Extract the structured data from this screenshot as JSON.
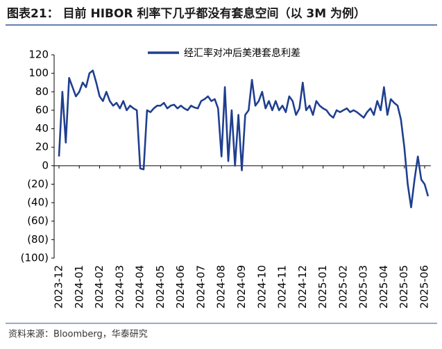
{
  "chart_data": {
    "type": "line",
    "title": "图表21： 目前 HIBOR 利率下几乎都没有套息空间（以 3M 为例）",
    "source": "资料来源：Bloomberg，华泰研究",
    "categories": [
      "2023-12",
      null,
      null,
      null,
      null,
      null,
      "2024-01",
      null,
      null,
      null,
      null,
      null,
      "2024-02",
      null,
      null,
      null,
      null,
      null,
      "2024-03",
      null,
      null,
      null,
      null,
      null,
      "2024-04",
      null,
      null,
      null,
      null,
      null,
      "2024-05",
      null,
      null,
      null,
      null,
      null,
      "2024-06",
      null,
      null,
      null,
      null,
      null,
      "2024-07",
      null,
      null,
      null,
      null,
      null,
      "2024-08",
      null,
      null,
      null,
      null,
      null,
      "2024-09",
      null,
      null,
      null,
      null,
      null,
      "2024-10",
      null,
      null,
      null,
      null,
      null,
      "2024-11",
      null,
      null,
      null,
      null,
      null,
      "2024-12",
      null,
      null,
      null,
      null,
      null,
      "2025-01",
      null,
      null,
      null,
      null,
      null,
      "2025-02",
      null,
      null,
      null,
      null,
      null,
      "2025-03",
      null,
      null,
      null,
      null,
      null,
      "2025-04",
      null,
      null,
      null,
      null,
      null,
      "2025-05",
      null,
      null,
      null,
      null,
      null,
      "2025-06",
      null
    ],
    "series": [
      {
        "name": "经汇率对冲后美港套息利差",
        "color": "#1f3f8f",
        "values": [
          10,
          80,
          25,
          95,
          85,
          75,
          80,
          90,
          85,
          100,
          103,
          90,
          75,
          70,
          80,
          70,
          65,
          68,
          62,
          70,
          60,
          65,
          62,
          60,
          -3,
          -4,
          60,
          58,
          62,
          65,
          65,
          68,
          62,
          65,
          66,
          62,
          65,
          62,
          60,
          65,
          63,
          62,
          70,
          72,
          75,
          70,
          72,
          62,
          10,
          85,
          5,
          60,
          0,
          55,
          -5,
          55,
          60,
          93,
          65,
          70,
          80,
          62,
          70,
          60,
          70,
          60,
          65,
          58,
          75,
          70,
          55,
          62,
          90,
          60,
          65,
          55,
          70,
          65,
          62,
          60,
          55,
          52,
          60,
          58,
          60,
          62,
          58,
          60,
          58,
          55,
          52,
          58,
          62,
          55,
          70,
          60,
          85,
          55,
          72,
          68,
          65,
          50,
          20,
          -20,
          -45,
          -15,
          10,
          -15,
          -20,
          -33
        ]
      }
    ],
    "ylim": [
      -100,
      120
    ],
    "yticks": [
      {
        "value": -100,
        "label": "(100)"
      },
      {
        "value": -80,
        "label": "(80)"
      },
      {
        "value": -60,
        "label": "(60)"
      },
      {
        "value": -40,
        "label": "(40)"
      },
      {
        "value": -20,
        "label": "(20)"
      },
      0,
      20,
      40,
      60,
      80,
      100,
      120
    ],
    "legend": "top"
  }
}
